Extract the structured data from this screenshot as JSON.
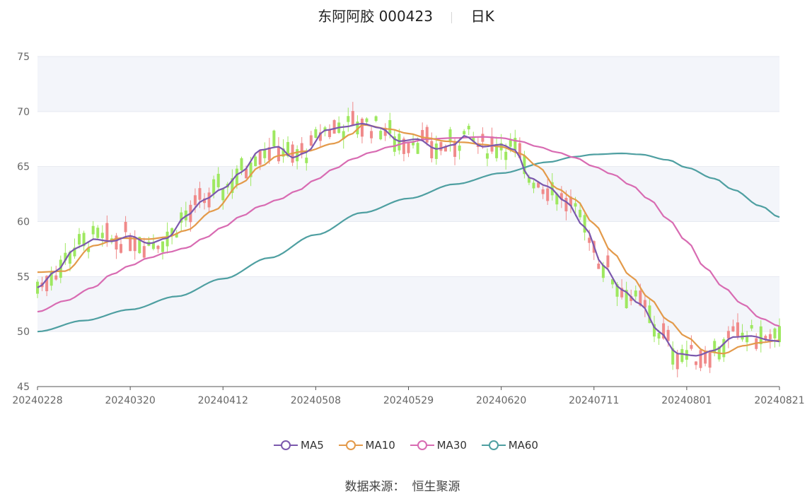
{
  "header": {
    "stock_name": "东阿阿胶",
    "stock_code": "000423",
    "period": "日K"
  },
  "source": {
    "label": "数据来源：",
    "value": "恒生聚源"
  },
  "legend": [
    {
      "name": "MA5",
      "color": "#7b58ad"
    },
    {
      "name": "MA10",
      "color": "#e39a4a"
    },
    {
      "name": "MA30",
      "color": "#d86bb2"
    },
    {
      "name": "MA60",
      "color": "#4e9fa1"
    }
  ],
  "colors": {
    "up": "#f08a8a",
    "down": "#9ee860",
    "band": "#f3f5fa",
    "grid": "#e6e9f0",
    "axis": "#666666"
  },
  "chart_data": {
    "type": "candlestick",
    "ylim": [
      45,
      75
    ],
    "y_ticks": [
      45,
      50,
      55,
      60,
      65,
      70,
      75
    ],
    "x_tick_labels": [
      "20240228",
      "20240320",
      "20240412",
      "20240508",
      "20240529",
      "20240620",
      "20240711",
      "20240801",
      "20240821"
    ],
    "candles": [],
    "ma_anchors": {
      "MA5": [
        [
          0,
          54.0
        ],
        [
          4,
          55.5
        ],
        [
          8,
          57.5
        ],
        [
          10,
          57.9
        ],
        [
          12,
          58.4
        ],
        [
          16,
          58.2
        ],
        [
          20,
          58.7
        ],
        [
          24,
          58.0
        ],
        [
          28,
          58.5
        ],
        [
          32,
          60.5
        ],
        [
          36,
          62.0
        ],
        [
          40,
          63.0
        ],
        [
          44,
          64.5
        ],
        [
          48,
          66.5
        ],
        [
          52,
          66.8
        ],
        [
          55,
          65.8
        ],
        [
          58,
          66.3
        ],
        [
          62,
          68.3
        ],
        [
          66,
          68.6
        ],
        [
          70,
          68.9
        ],
        [
          74,
          68.5
        ],
        [
          78,
          67.3
        ],
        [
          82,
          67.5
        ],
        [
          86,
          66.6
        ],
        [
          90,
          67.0
        ],
        [
          92,
          67.8
        ],
        [
          96,
          66.8
        ],
        [
          100,
          67.0
        ],
        [
          103,
          66.5
        ],
        [
          106,
          64.0
        ],
        [
          110,
          63.2
        ],
        [
          114,
          61.8
        ],
        [
          118,
          59.5
        ],
        [
          122,
          56.0
        ],
        [
          126,
          53.8
        ],
        [
          130,
          52.5
        ],
        [
          134,
          50.0
        ],
        [
          138,
          48.0
        ],
        [
          142,
          47.8
        ],
        [
          146,
          48.3
        ],
        [
          150,
          49.5
        ],
        [
          154,
          49.6
        ],
        [
          158,
          49.2
        ],
        [
          160,
          49.1
        ]
      ],
      "MA10": [
        [
          0,
          55.4
        ],
        [
          6,
          55.5
        ],
        [
          12,
          57.8
        ],
        [
          18,
          58.5
        ],
        [
          24,
          58.4
        ],
        [
          28,
          58.6
        ],
        [
          32,
          59.2
        ],
        [
          38,
          61.0
        ],
        [
          44,
          63.5
        ],
        [
          48,
          65.0
        ],
        [
          52,
          66.0
        ],
        [
          58,
          66.4
        ],
        [
          64,
          67.1
        ],
        [
          68,
          68.0
        ],
        [
          70,
          68.8
        ],
        [
          76,
          68.4
        ],
        [
          80,
          68.0
        ],
        [
          84,
          67.6
        ],
        [
          88,
          67.3
        ],
        [
          92,
          67.2
        ],
        [
          96,
          67.0
        ],
        [
          100,
          66.8
        ],
        [
          104,
          66.2
        ],
        [
          108,
          65.0
        ],
        [
          112,
          63.0
        ],
        [
          116,
          62.0
        ],
        [
          120,
          59.8
        ],
        [
          124,
          57.2
        ],
        [
          128,
          55.0
        ],
        [
          132,
          53.0
        ],
        [
          136,
          51.0
        ],
        [
          140,
          49.5
        ],
        [
          144,
          48.2
        ],
        [
          148,
          48.0
        ],
        [
          152,
          48.7
        ],
        [
          156,
          49.0
        ],
        [
          160,
          49.2
        ]
      ],
      "MA30": [
        [
          0,
          51.8
        ],
        [
          6,
          52.8
        ],
        [
          12,
          54.0
        ],
        [
          16,
          55.2
        ],
        [
          20,
          56.0
        ],
        [
          24,
          56.7
        ],
        [
          28,
          57.2
        ],
        [
          32,
          57.6
        ],
        [
          36,
          58.5
        ],
        [
          40,
          59.5
        ],
        [
          44,
          60.5
        ],
        [
          48,
          61.4
        ],
        [
          52,
          62.0
        ],
        [
          56,
          62.8
        ],
        [
          60,
          63.8
        ],
        [
          64,
          64.8
        ],
        [
          68,
          65.7
        ],
        [
          72,
          66.3
        ],
        [
          76,
          66.8
        ],
        [
          80,
          67.2
        ],
        [
          84,
          67.5
        ],
        [
          90,
          67.6
        ],
        [
          96,
          67.7
        ],
        [
          100,
          67.6
        ],
        [
          104,
          67.3
        ],
        [
          108,
          66.8
        ],
        [
          112,
          66.3
        ],
        [
          116,
          65.8
        ],
        [
          120,
          65.0
        ],
        [
          124,
          64.3
        ],
        [
          128,
          63.3
        ],
        [
          132,
          62.0
        ],
        [
          136,
          60.2
        ],
        [
          140,
          58.2
        ],
        [
          144,
          55.8
        ],
        [
          148,
          54.0
        ],
        [
          152,
          52.5
        ],
        [
          156,
          51.2
        ],
        [
          160,
          50.5
        ]
      ],
      "MA60": [
        [
          0,
          50.0
        ],
        [
          10,
          51.0
        ],
        [
          20,
          52.0
        ],
        [
          30,
          53.2
        ],
        [
          40,
          54.8
        ],
        [
          50,
          56.7
        ],
        [
          60,
          58.8
        ],
        [
          70,
          60.8
        ],
        [
          80,
          62.1
        ],
        [
          90,
          63.4
        ],
        [
          100,
          64.4
        ],
        [
          110,
          65.4
        ],
        [
          116,
          65.9
        ],
        [
          120,
          66.1
        ],
        [
          126,
          66.2
        ],
        [
          130,
          66.1
        ],
        [
          136,
          65.6
        ],
        [
          140,
          64.9
        ],
        [
          146,
          63.9
        ],
        [
          150,
          62.9
        ],
        [
          156,
          61.4
        ],
        [
          160,
          60.4
        ]
      ]
    }
  }
}
